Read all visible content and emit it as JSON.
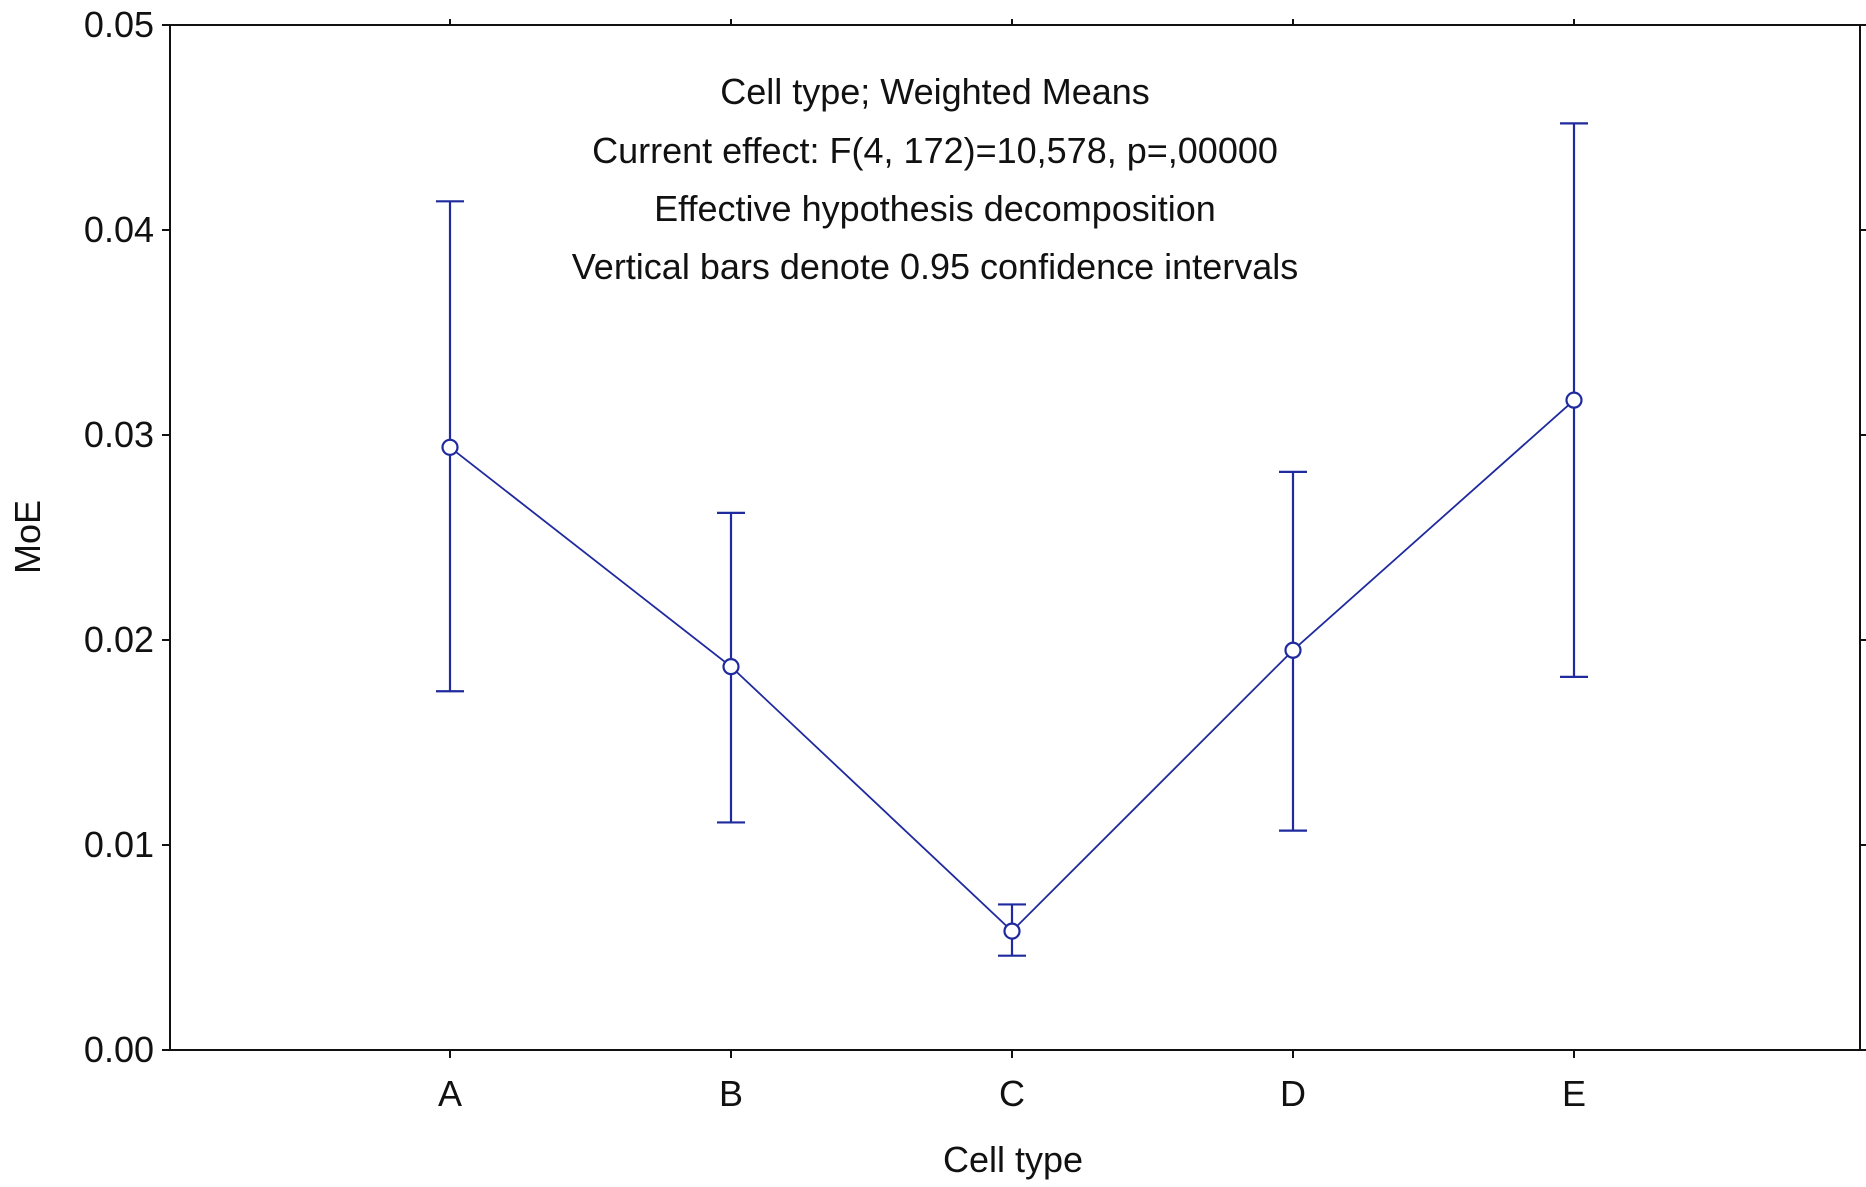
{
  "chart_data": {
    "type": "line",
    "categories": [
      "A",
      "B",
      "C",
      "D",
      "E"
    ],
    "series": [
      {
        "name": "MoE",
        "values": [
          0.0294,
          0.0187,
          0.0058,
          0.0195,
          0.0317
        ],
        "ci_lower": [
          0.0175,
          0.0111,
          0.0046,
          0.0107,
          0.0182
        ],
        "ci_upper": [
          0.0414,
          0.0262,
          0.0071,
          0.0282,
          0.0452
        ]
      }
    ],
    "xlabel": "Cell type",
    "ylabel": "MoE",
    "ylim": [
      0.0,
      0.05
    ],
    "yticks": [
      "0.00",
      "0.01",
      "0.02",
      "0.03",
      "0.04",
      "0.05"
    ],
    "annotations": [
      "Cell type; Weighted Means",
      "Current effect: F(4, 172)=10,578, p=,00000",
      "Effective hypothesis decomposition",
      "Vertical bars denote 0.95 confidence intervals"
    ],
    "grid": false,
    "colors": {
      "series": "#1f2a9e",
      "axis": "#111111"
    }
  }
}
